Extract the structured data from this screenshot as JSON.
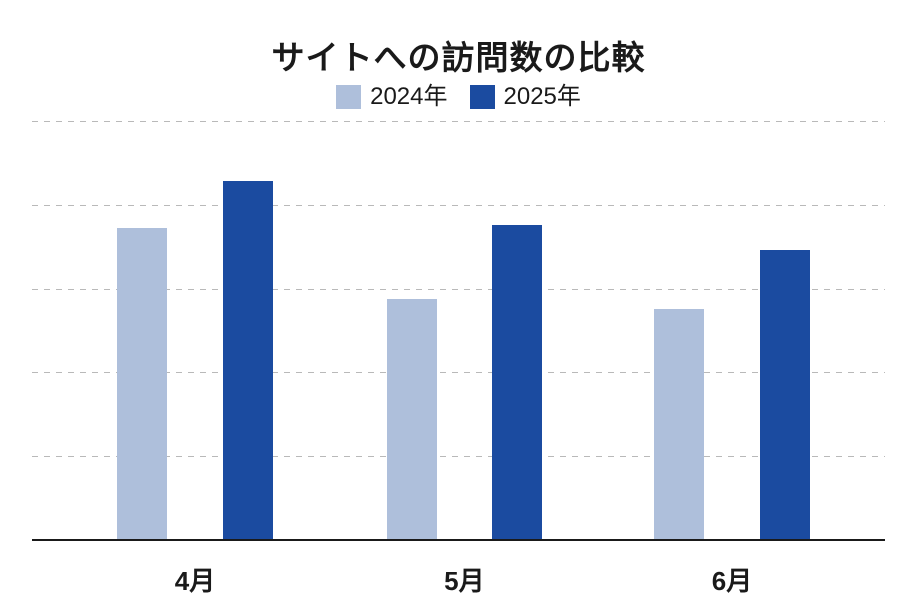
{
  "chart_data": {
    "type": "bar",
    "title": "サイトへの訪問数の比較",
    "categories": [
      "4月",
      "5月",
      "6月"
    ],
    "series": [
      {
        "name": "2024年",
        "color": "#AEBFDB",
        "values": [
          372,
          288,
          276
        ]
      },
      {
        "name": "2025年",
        "color": "#1B4BA0",
        "values": [
          429,
          376,
          346
        ]
      }
    ],
    "ylim": [
      0,
      500
    ],
    "grid": {
      "interval": 100,
      "style": "dashed",
      "color": "#b9b9b9",
      "y_tick_labels_visible": false
    },
    "legend_position": "top-center",
    "axis_line_color": "#1a1a1a",
    "background": "#ffffff",
    "xlabel": "",
    "ylabel": ""
  }
}
